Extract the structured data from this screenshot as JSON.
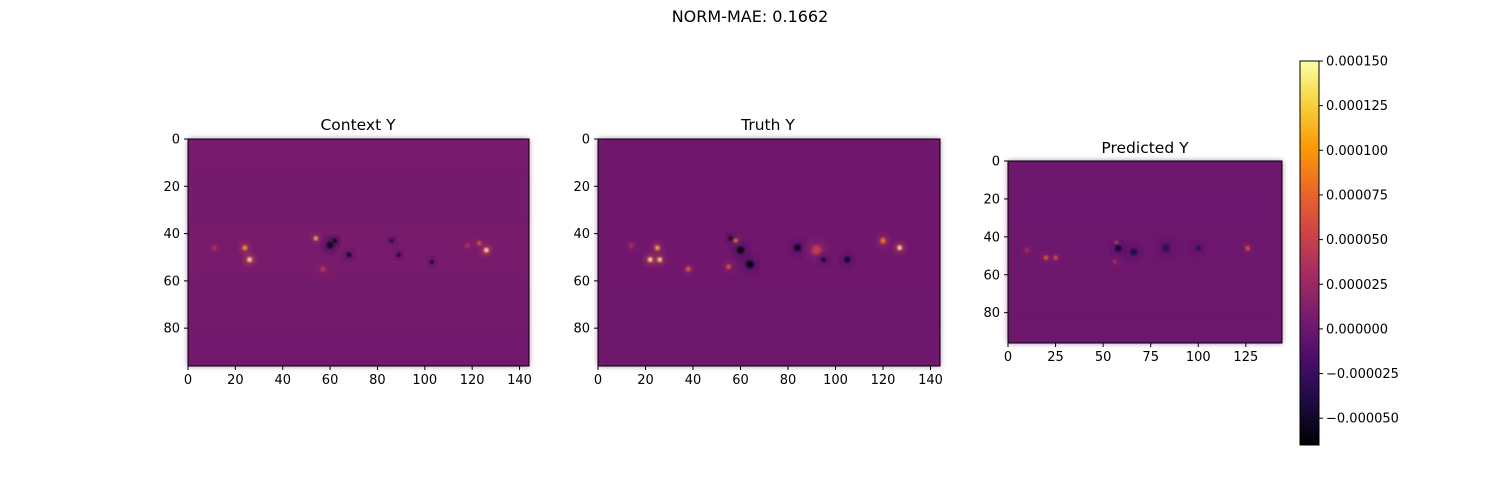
{
  "figure": {
    "suptitle": "NORM-MAE: 0.1662"
  },
  "chart_data": [
    {
      "type": "heatmap",
      "title": "Context Y",
      "xticks": [
        0,
        20,
        40,
        60,
        80,
        100,
        120,
        140
      ],
      "yticks": [
        0,
        20,
        40,
        60,
        80
      ],
      "xlim": [
        0,
        144
      ],
      "ylim": [
        96,
        0
      ],
      "colormap": "inferno",
      "background_value": 5.5e-06
    },
    {
      "type": "heatmap",
      "title": "Truth Y",
      "xticks": [
        0,
        20,
        40,
        60,
        80,
        100,
        120,
        140
      ],
      "yticks": [
        0,
        20,
        40,
        60,
        80
      ],
      "xlim": [
        0,
        144
      ],
      "ylim": [
        96,
        0
      ],
      "colormap": "inferno",
      "background_value": 2e-06
    },
    {
      "type": "heatmap",
      "title": "Predicted Y",
      "xticks": [
        0,
        25,
        50,
        75,
        100,
        125
      ],
      "yticks": [
        0,
        20,
        40,
        60,
        80
      ],
      "xlim": [
        0,
        144
      ],
      "ylim": [
        96,
        0
      ],
      "colormap": "inferno",
      "background_value": 1e-06
    }
  ],
  "colorbar": {
    "ticks": [
      "0.000150",
      "0.000125",
      "0.000100",
      "0.000075",
      "0.000050",
      "0.000025",
      "0.000000",
      "−0.000025",
      "−0.000050"
    ],
    "tick_values": [
      0.00015,
      0.000125,
      0.0001,
      7.5e-05,
      5e-05,
      2.5e-05,
      0,
      -2.5e-05,
      -5e-05
    ],
    "vmin": -6.5e-05,
    "vmax": 0.00015,
    "colors": {
      "stops": [
        "#000004",
        "#1b0c41",
        "#4a0c6b",
        "#781c6d",
        "#a52c60",
        "#cf4446",
        "#ed6925",
        "#fb9b06",
        "#f7d13d",
        "#fcffa4"
      ]
    }
  }
}
